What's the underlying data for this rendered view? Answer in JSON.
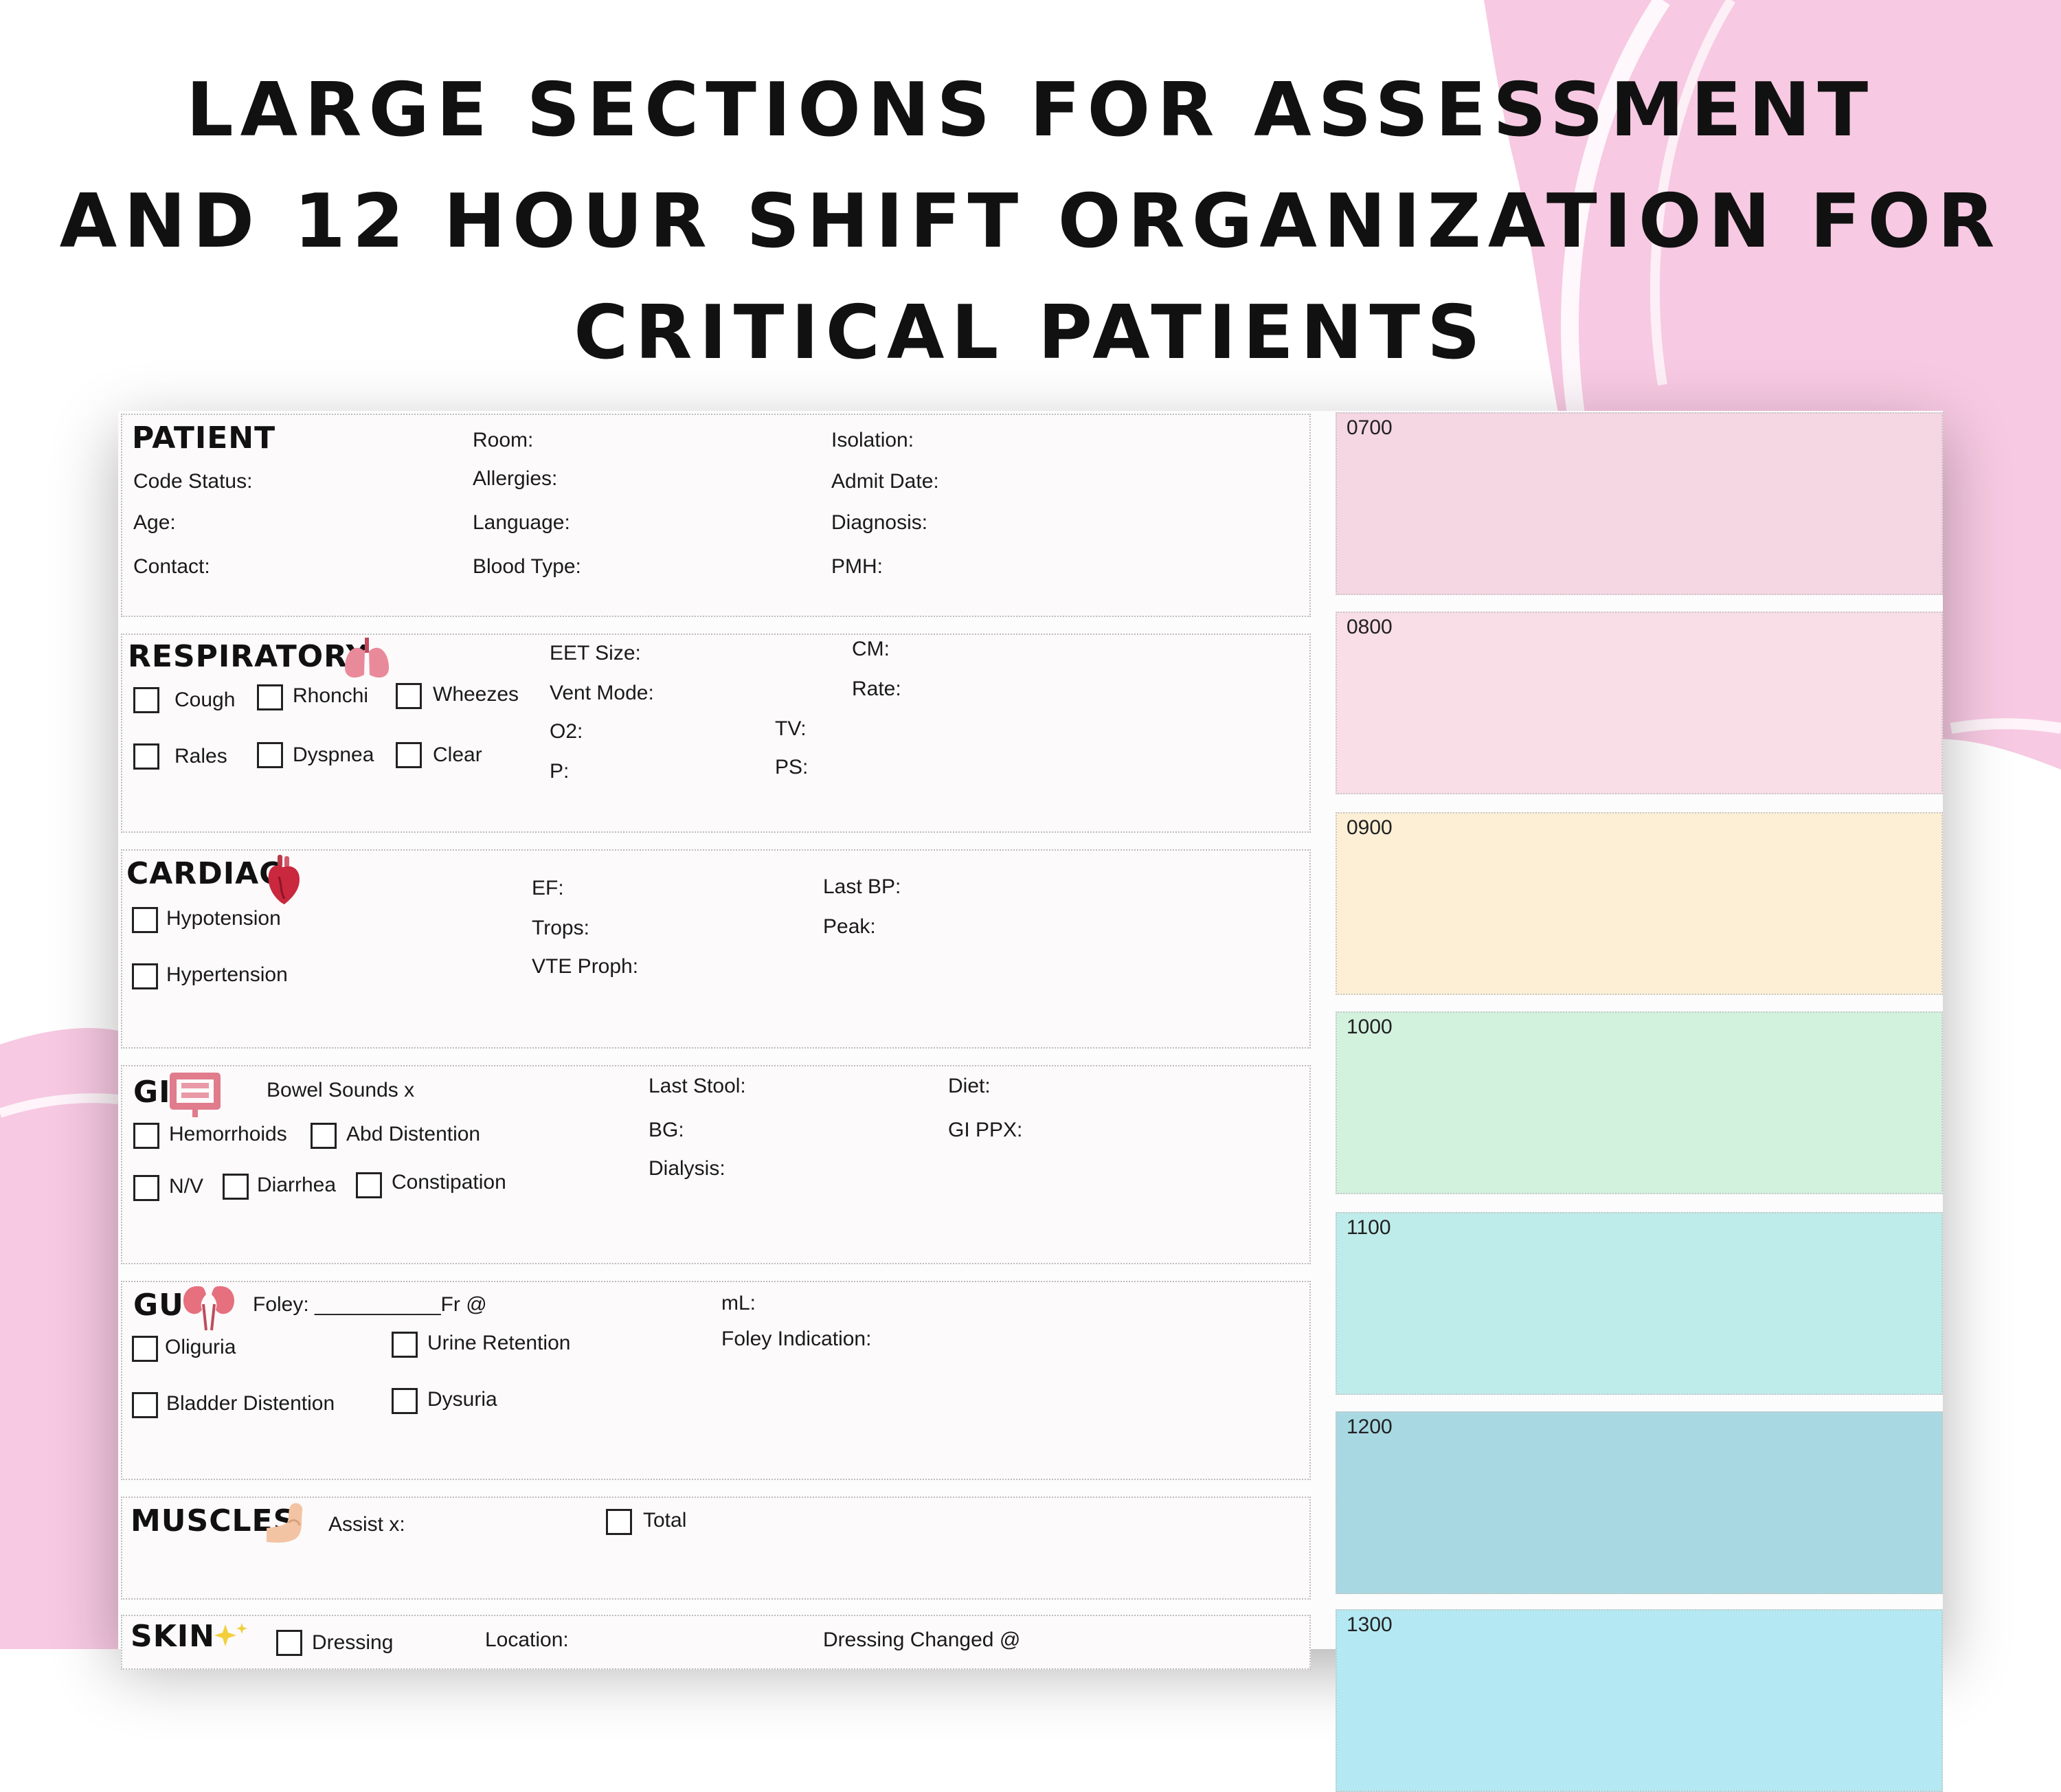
{
  "headline": {
    "line1": "LARGE SECTIONS FOR ASSESSMENT",
    "line2": "AND 12 HOUR SHIFT ORGANIZATION FOR",
    "line3": "CRITICAL PATIENTS"
  },
  "colors": {
    "accent_pink": "#f7c9e2",
    "slot_0700": "#f5d6e3",
    "slot_0800": "#f9dde7",
    "slot_0900": "#fcefd6",
    "slot_1000": "#d3f2de",
    "slot_1100": "#beeceb",
    "slot_1200": "#a8d9e3",
    "slot_1300": "#b4e9f3"
  },
  "patient": {
    "title": "PATIENT",
    "room": "Room:",
    "isolation": "Isolation:",
    "code_status": "Code Status:",
    "allergies": "Allergies:",
    "admit_date": "Admit Date:",
    "age": "Age:",
    "language": "Language:",
    "diagnosis": "Diagnosis:",
    "contact": "Contact:",
    "blood_type": "Blood Type:",
    "pmh": "PMH:"
  },
  "respiratory": {
    "title": "RESPIRATORY",
    "icon": "lungs-icon",
    "checks": [
      "Cough",
      "Rhonchi",
      "Wheezes",
      "Rales",
      "Dyspnea",
      "Clear"
    ],
    "eet_size": "EET Size:",
    "vent_mode": "Vent Mode:",
    "o2": "O2:",
    "p": "P:",
    "cm": "CM:",
    "rate": "Rate:",
    "tv": "TV:",
    "ps": "PS:"
  },
  "cardiac": {
    "title": "CARDIAC",
    "icon": "heart-icon",
    "checks": [
      "Hypotension",
      "Hypertension"
    ],
    "ef": "EF:",
    "trops": "Trops:",
    "vte": "VTE Proph:",
    "last_bp": "Last BP:",
    "peak": "Peak:"
  },
  "gi": {
    "title": "GI",
    "icon": "intestine-icon",
    "bowel_sounds": "Bowel Sounds x",
    "checks": [
      "Hemorrhoids",
      "Abd Distention",
      "N/V",
      "Diarrhea",
      "Constipation"
    ],
    "last_stool": "Last Stool:",
    "bg": "BG:",
    "dialysis": "Dialysis:",
    "diet": "Diet:",
    "gi_ppx": "GI PPX:"
  },
  "gu": {
    "title": "GU",
    "icon": "kidneys-icon",
    "foley": "Foley: ___________Fr @",
    "ml": "mL:",
    "foley_indication": "Foley Indication:",
    "checks": [
      "Oliguria",
      "Urine Retention",
      "Bladder Distention",
      "Dysuria"
    ]
  },
  "muscles": {
    "title": "MUSCLES",
    "icon": "flexed-arm-icon",
    "assist": "Assist x:",
    "total": "Total"
  },
  "skin": {
    "title": "SKIN",
    "icon": "sparkle-icon",
    "dressing": "Dressing",
    "location": "Location:",
    "dressing_changed": "Dressing Changed @"
  },
  "schedule": {
    "slots": [
      "0700",
      "0800",
      "0900",
      "1000",
      "1100",
      "1200",
      "1300"
    ]
  }
}
